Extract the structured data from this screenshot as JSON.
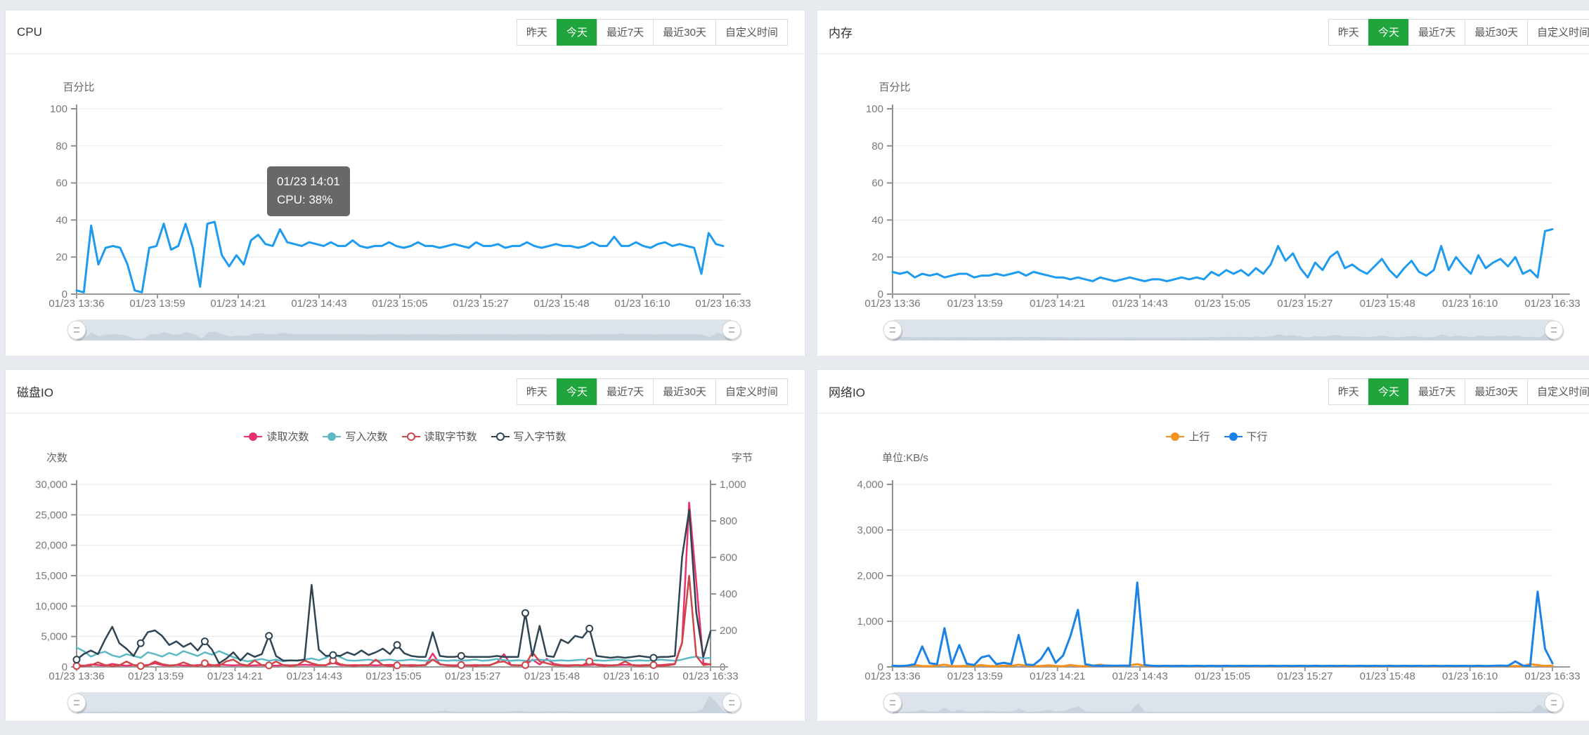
{
  "time_buttons": {
    "items": [
      "昨天",
      "今天",
      "最近7天",
      "最近30天",
      "自定义时间"
    ],
    "active_index": 1
  },
  "colors": {
    "active_button_green": "#20a53c",
    "cpu_line": "#1e9bf0",
    "memory_line": "#1e9bf0",
    "disk_read_count": "#e8316d",
    "disk_write_count": "#5fb9c5",
    "disk_read_bytes": "#cf4649",
    "disk_write_bytes": "#2f4554",
    "net_up": "#f5921f",
    "net_down": "#1b82e8"
  },
  "chart_data": [
    {
      "type": "line",
      "title": "CPU",
      "axis_name": "百分比",
      "y_left": {
        "ticks": [
          "100",
          "80",
          "60",
          "40",
          "20",
          "0"
        ],
        "max": 100
      },
      "x_labels": [
        "01/23 13:36",
        "01/23 13:59",
        "01/23 14:21",
        "01/23 14:43",
        "01/23 15:05",
        "01/23 15:27",
        "01/23 15:48",
        "01/23 16:10",
        "01/23 16:33"
      ],
      "tooltip": {
        "line1": "01/23 14:01",
        "line2": "CPU: 38%"
      },
      "slider_series": 0,
      "series": [
        {
          "key": "cpu-usage",
          "name": "CPU",
          "color": "#1e9bf0",
          "axis": "left",
          "width": 3,
          "marker": "none",
          "values": [
            2,
            1,
            37,
            16,
            25,
            26,
            25,
            16,
            2,
            1,
            25,
            26,
            38,
            24,
            26,
            38,
            25,
            4,
            38,
            39,
            21,
            15,
            21,
            16,
            29,
            32,
            27,
            26,
            35,
            28,
            27,
            26,
            28,
            27,
            26,
            28,
            26,
            26,
            29,
            26,
            25,
            26,
            26,
            28,
            26,
            25,
            26,
            28,
            26,
            26,
            25,
            26,
            27,
            26,
            25,
            28,
            26,
            26,
            27,
            25,
            26,
            26,
            28,
            26,
            25,
            26,
            27,
            26,
            26,
            25,
            26,
            28,
            26,
            26,
            31,
            26,
            26,
            28,
            26,
            25,
            27,
            28,
            26,
            27,
            26,
            25,
            11,
            33,
            27,
            26
          ]
        }
      ]
    },
    {
      "type": "line",
      "title": "内存",
      "axis_name": "百分比",
      "y_left": {
        "ticks": [
          "100",
          "80",
          "60",
          "40",
          "20",
          "0"
        ],
        "max": 100
      },
      "x_labels": [
        "01/23 13:36",
        "01/23 13:59",
        "01/23 14:21",
        "01/23 14:43",
        "01/23 15:05",
        "01/23 15:27",
        "01/23 15:48",
        "01/23 16:10",
        "01/23 16:33"
      ],
      "slider_series": 0,
      "series": [
        {
          "key": "memory-usage",
          "name": "内存",
          "color": "#1e9bf0",
          "axis": "left",
          "width": 3,
          "marker": "none",
          "values": [
            12,
            11,
            12,
            9,
            11,
            10,
            11,
            9,
            10,
            11,
            11,
            9,
            10,
            10,
            11,
            10,
            11,
            12,
            10,
            12,
            11,
            10,
            9,
            9,
            8,
            9,
            8,
            7,
            9,
            8,
            7,
            8,
            9,
            8,
            7,
            8,
            8,
            7,
            8,
            9,
            8,
            9,
            8,
            12,
            10,
            13,
            11,
            13,
            10,
            14,
            11,
            16,
            26,
            18,
            22,
            14,
            9,
            17,
            13,
            20,
            23,
            14,
            16,
            13,
            11,
            15,
            19,
            13,
            9,
            14,
            18,
            12,
            10,
            13,
            26,
            13,
            20,
            15,
            11,
            21,
            14,
            17,
            19,
            15,
            20,
            11,
            13,
            9,
            34,
            35
          ]
        }
      ]
    },
    {
      "type": "line",
      "title": "磁盘IO",
      "axis_name": "次数",
      "axis_name_right": "字节",
      "y_left": {
        "ticks": [
          "30,000",
          "25,000",
          "20,000",
          "15,000",
          "10,000",
          "5,000",
          "0"
        ],
        "max": 30000
      },
      "y_right": {
        "ticks": [
          "1,000",
          "800",
          "600",
          "400",
          "200",
          "0"
        ],
        "max": 1000
      },
      "x_labels": [
        "01/23 13:36",
        "01/23 13:59",
        "01/23 14:21",
        "01/23 14:43",
        "01/23 15:05",
        "01/23 15:27",
        "01/23 15:48",
        "01/23 16:10",
        "01/23 16:33"
      ],
      "slider_series": 0,
      "legend": [
        {
          "key": "read-count",
          "label": "读取次数",
          "color": "#e8316d",
          "marker": "filled"
        },
        {
          "key": "write-count",
          "label": "写入次数",
          "color": "#5fb9c5",
          "marker": "filled"
        },
        {
          "key": "read-bytes",
          "label": "读取字节数",
          "color": "#cf4649",
          "marker": "open"
        },
        {
          "key": "write-bytes",
          "label": "写入字节数",
          "color": "#2f4554",
          "marker": "open"
        }
      ],
      "series": [
        {
          "key": "read-count",
          "name": "读取次数",
          "color": "#e8316d",
          "axis": "left",
          "width": 2.5,
          "marker": "none",
          "values": [
            300,
            200,
            400,
            300,
            200,
            500,
            300,
            200,
            300,
            250,
            300,
            600,
            300,
            200,
            300,
            250,
            200,
            300,
            250,
            200,
            400,
            300,
            250,
            300,
            200,
            250,
            300,
            250,
            200,
            300,
            250,
            300,
            350,
            300,
            250,
            300,
            700,
            300,
            250,
            300,
            250,
            300,
            250,
            300,
            350,
            300,
            250,
            300,
            250,
            300,
            2200,
            400,
            300,
            250,
            300,
            250,
            300,
            250,
            300,
            700,
            2100,
            300,
            250,
            300,
            1200,
            400,
            1300,
            500,
            300,
            250,
            300,
            250,
            300,
            400,
            300,
            250,
            300,
            350,
            300,
            250,
            300,
            250,
            300,
            400,
            500,
            4000,
            27000,
            14000,
            600,
            400
          ]
        },
        {
          "key": "write-count",
          "name": "写入次数",
          "color": "#5fb9c5",
          "axis": "left",
          "width": 2.5,
          "marker": "none",
          "values": [
            3200,
            2600,
            1700,
            2200,
            2500,
            1900,
            1600,
            2100,
            1800,
            1500,
            2400,
            2100,
            1700,
            2300,
            1900,
            2600,
            2200,
            1800,
            2400,
            2000,
            2600,
            2100,
            1600,
            1200,
            900,
            1100,
            1300,
            1000,
            1200,
            900,
            1100,
            1000,
            1200,
            1400,
            1100,
            1500,
            2100,
            1600,
            1100,
            1000,
            1100,
            1200,
            1000,
            1100,
            1200,
            1000,
            1100,
            1200,
            1100,
            1000,
            1200,
            1100,
            1000,
            1100,
            1000,
            1100,
            1200,
            1000,
            1100,
            1300,
            1100,
            1000,
            1100,
            1000,
            1100,
            1200,
            1100,
            1000,
            1100,
            1000,
            1100,
            1200,
            1000,
            1100,
            1000,
            1100,
            1200,
            1100,
            1000,
            1100,
            1000,
            1100,
            1200,
            1100,
            1000,
            1200,
            1500,
            1700,
            1400,
            1500
          ]
        },
        {
          "key": "read-bytes",
          "name": "读取字节数",
          "color": "#cf4649",
          "axis": "right",
          "width": 2.5,
          "marker": "open",
          "values": [
            5,
            5,
            8,
            25,
            10,
            5,
            8,
            30,
            10,
            5,
            8,
            30,
            15,
            8,
            10,
            25,
            10,
            5,
            20,
            10,
            5,
            30,
            40,
            15,
            8,
            35,
            10,
            8,
            30,
            10,
            5,
            10,
            35,
            20,
            10,
            8,
            35,
            15,
            8,
            5,
            10,
            8,
            40,
            10,
            5,
            8,
            10,
            5,
            8,
            10,
            40,
            15,
            8,
            5,
            10,
            8,
            5,
            10,
            8,
            25,
            30,
            10,
            8,
            10,
            80,
            30,
            20,
            10,
            8,
            5,
            10,
            8,
            30,
            10,
            5,
            8,
            10,
            30,
            10,
            5,
            8,
            10,
            5,
            8,
            15,
            130,
            500,
            60,
            10,
            15
          ]
        },
        {
          "key": "write-bytes",
          "name": "写入字节数",
          "color": "#2f4554",
          "axis": "right",
          "width": 2.5,
          "marker": "open",
          "values": [
            40,
            70,
            90,
            70,
            150,
            220,
            130,
            100,
            60,
            130,
            190,
            200,
            170,
            120,
            140,
            110,
            130,
            90,
            140,
            95,
            20,
            45,
            80,
            35,
            75,
            55,
            70,
            170,
            60,
            35,
            35,
            35,
            40,
            450,
            95,
            60,
            65,
            60,
            80,
            65,
            90,
            65,
            80,
            100,
            70,
            120,
            75,
            60,
            55,
            55,
            190,
            60,
            55,
            55,
            60,
            55,
            55,
            55,
            55,
            60,
            55,
            55,
            55,
            295,
            60,
            225,
            60,
            55,
            150,
            130,
            170,
            160,
            210,
            60,
            55,
            50,
            55,
            50,
            55,
            60,
            55,
            50,
            55,
            55,
            60,
            600,
            860,
            300,
            55,
            195
          ]
        }
      ]
    },
    {
      "type": "line",
      "title": "网络IO",
      "axis_name": "单位:KB/s",
      "y_left": {
        "ticks": [
          "4,000",
          "3,000",
          "2,000",
          "1,000",
          "0"
        ],
        "max": 4000
      },
      "x_labels": [
        "01/23 13:36",
        "01/23 13:59",
        "01/23 14:21",
        "01/23 14:43",
        "01/23 15:05",
        "01/23 15:27",
        "01/23 15:48",
        "01/23 16:10",
        "01/23 16:33"
      ],
      "slider_series": 1,
      "legend": [
        {
          "key": "uplink",
          "label": "上行",
          "color": "#f5921f",
          "marker": "filled"
        },
        {
          "key": "downlink",
          "label": "下行",
          "color": "#1b82e8",
          "marker": "filled"
        }
      ],
      "series": [
        {
          "key": "uplink",
          "name": "上行",
          "color": "#f5921f",
          "axis": "left",
          "width": 3,
          "marker": "none",
          "values": [
            20,
            15,
            25,
            40,
            20,
            15,
            30,
            50,
            20,
            15,
            25,
            20,
            40,
            20,
            15,
            30,
            20,
            50,
            25,
            15,
            20,
            35,
            20,
            15,
            40,
            20,
            15,
            25,
            50,
            20,
            15,
            20,
            35,
            60,
            25,
            15,
            20,
            15,
            25,
            20,
            15,
            20,
            15,
            20,
            25,
            15,
            20,
            15,
            20,
            15,
            20,
            15,
            20,
            15,
            20,
            15,
            20,
            15,
            20,
            15,
            20,
            15,
            20,
            15,
            20,
            15,
            20,
            15,
            20,
            15,
            20,
            15,
            20,
            15,
            20,
            15,
            20,
            15,
            20,
            15,
            20,
            15,
            20,
            15,
            20,
            15,
            60,
            40,
            20,
            30
          ]
        },
        {
          "key": "downlink",
          "name": "下行",
          "color": "#1b82e8",
          "axis": "left",
          "width": 3,
          "marker": "none",
          "values": [
            25,
            20,
            30,
            60,
            450,
            80,
            60,
            850,
            60,
            480,
            70,
            40,
            210,
            250,
            60,
            90,
            60,
            700,
            50,
            40,
            170,
            420,
            90,
            250,
            680,
            1250,
            60,
            30,
            25,
            30,
            25,
            30,
            25,
            1850,
            40,
            25,
            20,
            25,
            20,
            25,
            20,
            25,
            20,
            25,
            20,
            25,
            20,
            25,
            20,
            25,
            20,
            25,
            20,
            25,
            20,
            25,
            20,
            25,
            20,
            25,
            20,
            25,
            20,
            25,
            20,
            25,
            20,
            25,
            20,
            25,
            20,
            25,
            20,
            25,
            20,
            25,
            20,
            25,
            20,
            25,
            20,
            25,
            30,
            25,
            120,
            30,
            25,
            1650,
            400,
            80
          ]
        }
      ]
    }
  ]
}
